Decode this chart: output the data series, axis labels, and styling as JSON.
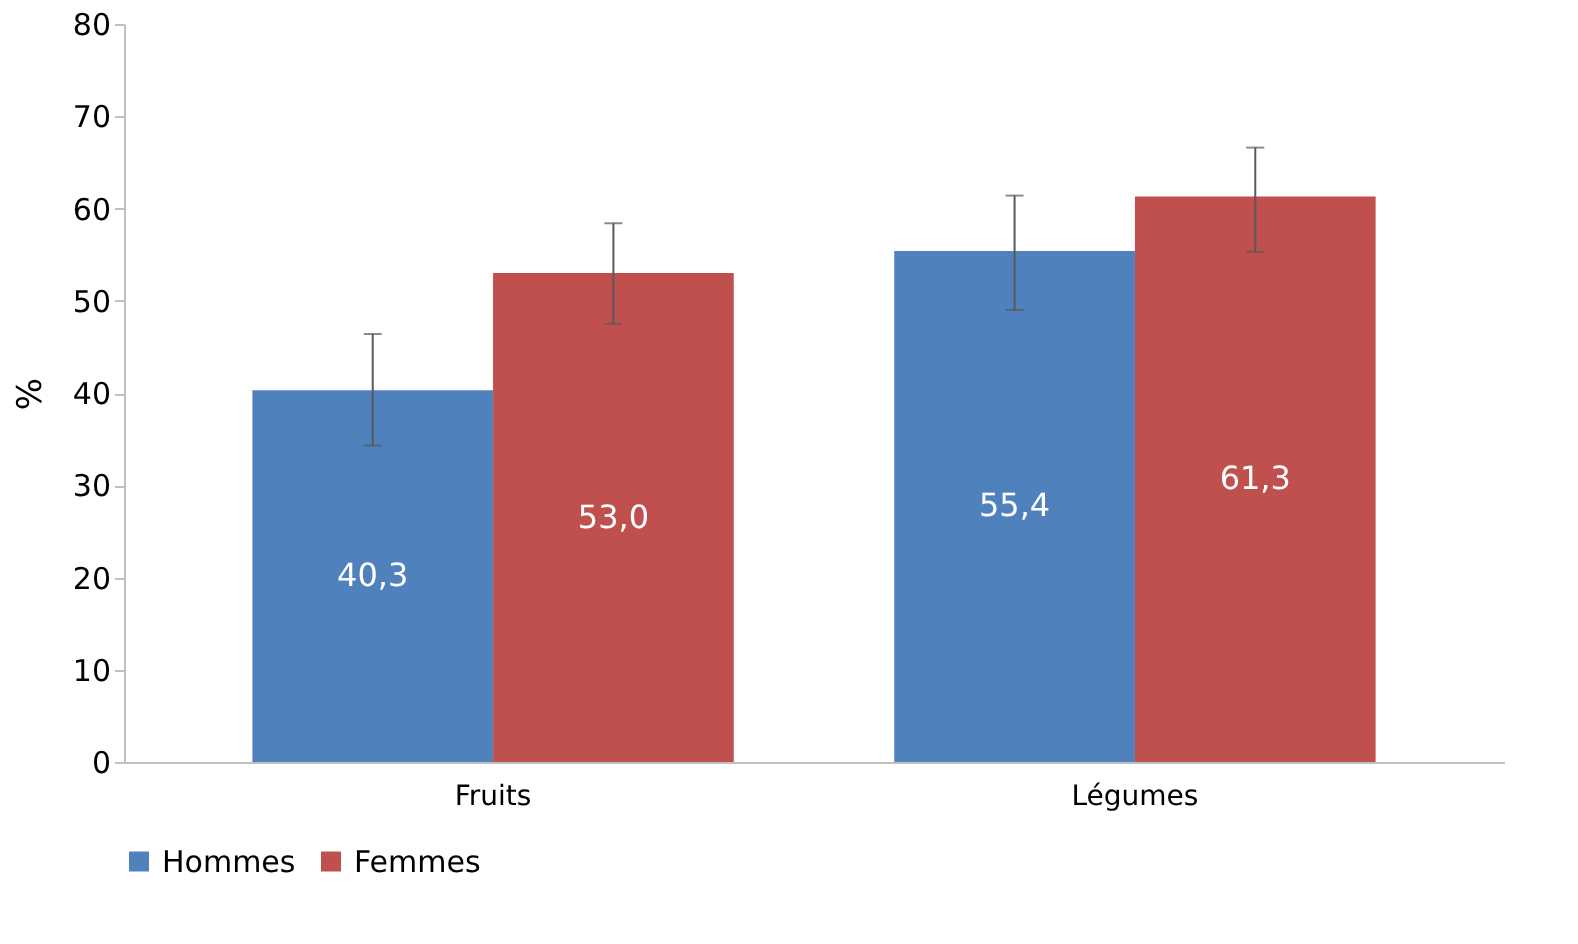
{
  "chart_data": {
    "type": "bar",
    "ylabel": "%",
    "categories": [
      "Fruits",
      "Légumes"
    ],
    "series": [
      {
        "name": "Hommes",
        "color": "#4f81bd",
        "values": [
          40.3,
          55.4
        ],
        "errors": [
          [
            34.3,
            46.4
          ],
          [
            49.0,
            61.4
          ]
        ],
        "value_labels": [
          "40,3",
          "55,4"
        ]
      },
      {
        "name": "Femmes",
        "color": "#c0504d",
        "values": [
          53.0,
          61.3
        ],
        "errors": [
          [
            47.5,
            58.4
          ],
          [
            55.3,
            66.6
          ]
        ],
        "value_labels": [
          "53,0",
          "61,3"
        ]
      }
    ],
    "ylim": [
      0,
      80
    ],
    "yticks": [
      0,
      10,
      20,
      30,
      40,
      50,
      60,
      70,
      80
    ],
    "grid": false,
    "legend": "bottom"
  }
}
